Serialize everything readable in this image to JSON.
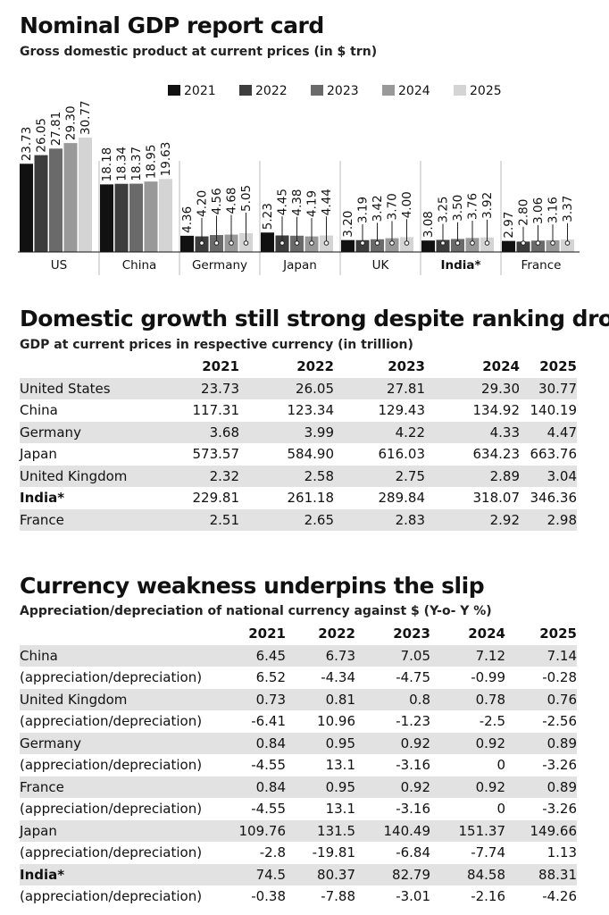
{
  "section1": {
    "title": "Nominal GDP report card",
    "subtitle": "Gross domestic product at current prices  (in $ trn)"
  },
  "chart_data": {
    "type": "bar",
    "title": "Nominal GDP report card",
    "subtitle": "Gross domestic product at current prices  (in $ trn)",
    "categories": [
      "US",
      "China",
      "Germany",
      "Japan",
      "UK",
      "India*",
      "France"
    ],
    "series": [
      {
        "name": "2021",
        "color": "#111111",
        "values": [
          23.73,
          18.18,
          4.36,
          5.23,
          3.2,
          3.08,
          2.97
        ]
      },
      {
        "name": "2022",
        "color": "#3d3d3d",
        "values": [
          26.05,
          18.34,
          4.2,
          4.45,
          3.19,
          3.25,
          2.8
        ]
      },
      {
        "name": "2023",
        "color": "#6a6a6a",
        "values": [
          27.81,
          18.37,
          4.56,
          4.38,
          3.42,
          3.5,
          3.06
        ]
      },
      {
        "name": "2024",
        "color": "#999999",
        "values": [
          29.3,
          18.95,
          4.68,
          4.19,
          3.7,
          3.76,
          3.16
        ]
      },
      {
        "name": "2025",
        "color": "#d4d4d4",
        "values": [
          30.77,
          19.63,
          5.05,
          4.44,
          4.0,
          3.92,
          3.37
        ]
      }
    ],
    "legend_position": "top",
    "grid": false
  },
  "section2": {
    "title": "Domestic growth still strong despite ranking drop",
    "subtitle": "GDP at current prices in respective currency (in trillion)",
    "years": [
      "2021",
      "2022",
      "2023",
      "2024",
      "2025"
    ],
    "rows": [
      {
        "label": "United States",
        "values": [
          "23.73",
          "26.05",
          "27.81",
          "29.30",
          "30.77"
        ]
      },
      {
        "label": "China",
        "values": [
          "117.31",
          "123.34",
          "129.43",
          "134.92",
          "140.19"
        ]
      },
      {
        "label": "Germany",
        "values": [
          "3.68",
          "3.99",
          "4.22",
          "4.33",
          "4.47"
        ]
      },
      {
        "label": "Japan",
        "values": [
          "573.57",
          "584.90",
          "616.03",
          "634.23",
          "663.76"
        ]
      },
      {
        "label": "United Kingdom",
        "values": [
          "2.32",
          "2.58",
          "2.75",
          "2.89",
          "3.04"
        ]
      },
      {
        "label": "India*",
        "values": [
          "229.81",
          "261.18",
          "289.84",
          "318.07",
          "346.36"
        ]
      },
      {
        "label": "France",
        "values": [
          "2.51",
          "2.65",
          "2.83",
          "2.92",
          "2.98"
        ]
      }
    ]
  },
  "section3": {
    "title": "Currency weakness underpins the slip",
    "subtitle": "Appreciation/depreciation of national currency against $ (Y-o- Y %)",
    "years": [
      "2021",
      "2022",
      "2023",
      "2024",
      "2025"
    ],
    "rows": [
      {
        "label": "China",
        "values": [
          "6.45",
          "6.73",
          "7.05",
          "7.12",
          "7.14"
        ]
      },
      {
        "label": "(appreciation/depreciation)",
        "values": [
          "6.52",
          "-4.34",
          "-4.75",
          "-0.99",
          "-0.28"
        ]
      },
      {
        "label": "United Kingdom",
        "values": [
          "0.73",
          "0.81",
          "0.8",
          "0.78",
          "0.76"
        ]
      },
      {
        "label": "(appreciation/depreciation)",
        "values": [
          "-6.41",
          "10.96",
          "-1.23",
          "-2.5",
          "-2.56"
        ]
      },
      {
        "label": "Germany",
        "values": [
          "0.84",
          "0.95",
          "0.92",
          "0.92",
          "0.89"
        ]
      },
      {
        "label": "(appreciation/depreciation)",
        "values": [
          "-4.55",
          "13.1",
          "-3.16",
          "0",
          "-3.26"
        ]
      },
      {
        "label": "France",
        "values": [
          "0.84",
          "0.95",
          "0.92",
          "0.92",
          "0.89"
        ]
      },
      {
        "label": "(appreciation/depreciation)",
        "values": [
          "-4.55",
          "13.1",
          "-3.16",
          "0",
          "-3.26"
        ]
      },
      {
        "label": "Japan",
        "values": [
          "109.76",
          "131.5",
          "140.49",
          "151.37",
          "149.66"
        ]
      },
      {
        "label": "(appreciation/depreciation)",
        "values": [
          "-2.8",
          "-19.81",
          "-6.84",
          "-7.74",
          "1.13"
        ]
      },
      {
        "label": "India*",
        "values": [
          "74.5",
          "80.37",
          "82.79",
          "84.58",
          "88.31"
        ]
      },
      {
        "label": "(appreciation/depreciation)",
        "values": [
          "-0.38",
          "-7.88",
          "-3.01",
          "-2.16",
          "-4.26"
        ]
      }
    ]
  }
}
